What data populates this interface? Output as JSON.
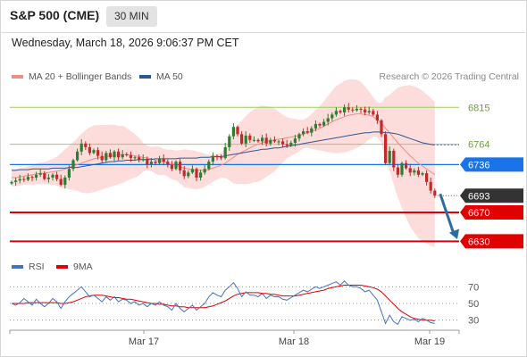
{
  "header": {
    "symbol": "S&P 500 (CME)",
    "timeframe": "30 MIN",
    "datetime": "Wednesday, March 18, 2026 9:06:37 PM CET"
  },
  "legend": {
    "ma20": "MA 20 + Bollinger Bands",
    "ma20_color": "#f28b82",
    "ma50": "MA 50",
    "ma50_color": "#2f5597",
    "credit": "Research © 2026 Trading Central"
  },
  "rsi_legend": {
    "rsi": "RSI",
    "rsi_color": "#4472c4",
    "ma9": "9MA",
    "ma9_color": "#e00000"
  },
  "colors": {
    "up": "#2e7d32",
    "down": "#c62828",
    "band": "#fddcdc",
    "resistance": "#9ccc65",
    "pivot": "#1a73e8",
    "support": "#e00000",
    "arrow": "#2e6aa6"
  },
  "chart_data": {
    "type": "candlestick",
    "ylim": [
      6612,
      6840
    ],
    "x_labels": [
      "Mar 17",
      "Mar 18",
      "Mar 19"
    ],
    "levels": [
      {
        "value": 6815,
        "label": "6815",
        "kind": "resistance"
      },
      {
        "value": 6764,
        "label": "6764",
        "kind": "resistance"
      },
      {
        "value": 6736,
        "label": "6736",
        "kind": "pivot"
      },
      {
        "value": 6693,
        "label": "6693",
        "kind": "last"
      },
      {
        "value": 6670,
        "label": "6670",
        "kind": "support"
      },
      {
        "value": 6630,
        "label": "6630",
        "kind": "support"
      }
    ],
    "close": [
      6712,
      6714,
      6716,
      6715,
      6719,
      6718,
      6722,
      6724,
      6716,
      6718,
      6722,
      6716,
      6708,
      6718,
      6730,
      6742,
      6754,
      6765,
      6760,
      6752,
      6756,
      6748,
      6742,
      6752,
      6746,
      6754,
      6746,
      6750,
      6749,
      6745,
      6746,
      6742,
      6744,
      6736,
      6740,
      6738,
      6744,
      6740,
      6736,
      6730,
      6740,
      6728,
      6720,
      6725,
      6730,
      6718,
      6725,
      6730,
      6740,
      6748,
      6746,
      6745,
      6760,
      6775,
      6788,
      6778,
      6765,
      6776,
      6770,
      6770,
      6768,
      6773,
      6765,
      6770,
      6768,
      6768,
      6764,
      6762,
      6766,
      6772,
      6778,
      6782,
      6780,
      6786,
      6792,
      6790,
      6795,
      6800,
      6805,
      6810,
      6808,
      6815,
      6812,
      6811,
      6813,
      6812,
      6808,
      6810,
      6805,
      6797,
      6778,
      6738,
      6755,
      6732,
      6722,
      6738,
      6731,
      6725,
      6728,
      6722,
      6724,
      6712,
      6700,
      6693
    ],
    "ma20": [
      6718,
      6718,
      6719,
      6720,
      6721,
      6722,
      6723,
      6724,
      6724,
      6725,
      6726,
      6727,
      6728,
      6730,
      6732,
      6734,
      6736,
      6738,
      6740,
      6742,
      6744,
      6745,
      6746,
      6747,
      6748,
      6749,
      6749,
      6750,
      6750,
      6749,
      6748,
      6747,
      6746,
      6745,
      6744,
      6742,
      6741,
      6740,
      6738,
      6736,
      6735,
      6733,
      6731,
      6730,
      6729,
      6728,
      6728,
      6728,
      6729,
      6731,
      6733,
      6735,
      6738,
      6742,
      6746,
      6750,
      6753,
      6756,
      6759,
      6762,
      6764,
      6766,
      6768,
      6769,
      6770,
      6771,
      6772,
      6773,
      6774,
      6775,
      6776,
      6778,
      6780,
      6782,
      6784,
      6786,
      6789,
      6792,
      6795,
      6798,
      6800,
      6802,
      6804,
      6805,
      6806,
      6806,
      6805,
      6804,
      6802,
      6798,
      6793,
      6786,
      6780,
      6773,
      6766,
      6760,
      6754,
      6748,
      6743,
      6738,
      6734,
      6730,
      6726,
      6722
    ],
    "ma50": [
      6728,
      6728,
      6729,
      6729,
      6729,
      6730,
      6730,
      6730,
      6730,
      6730,
      6731,
      6731,
      6731,
      6731,
      6732,
      6732,
      6732,
      6733,
      6734,
      6735,
      6736,
      6737,
      6738,
      6739,
      6740,
      6740,
      6741,
      6741,
      6742,
      6742,
      6742,
      6743,
      6743,
      6743,
      6743,
      6744,
      6744,
      6744,
      6744,
      6744,
      6744,
      6745,
      6745,
      6745,
      6745,
      6745,
      6746,
      6746,
      6746,
      6747,
      6747,
      6747,
      6748,
      6749,
      6750,
      6751,
      6752,
      6753,
      6754,
      6755,
      6756,
      6757,
      6757,
      6758,
      6759,
      6759,
      6760,
      6761,
      6762,
      6763,
      6764,
      6765,
      6766,
      6767,
      6768,
      6769,
      6770,
      6771,
      6772,
      6773,
      6774,
      6775,
      6776,
      6777,
      6778,
      6779,
      6780,
      6780,
      6781,
      6781,
      6781,
      6780,
      6780,
      6779,
      6778,
      6776,
      6774,
      6772,
      6770,
      6768,
      6766,
      6765,
      6764,
      6763
    ],
    "ma50_projection": 6763,
    "arrow_target": 6633,
    "rsi": {
      "ylim": [
        20,
        80
      ],
      "levels": [
        70,
        50,
        30
      ],
      "rsi": [
        50,
        48,
        51,
        56,
        52,
        48,
        55,
        50,
        46,
        50,
        56,
        52,
        44,
        52,
        58,
        62,
        66,
        70,
        64,
        58,
        60,
        56,
        52,
        58,
        54,
        58,
        52,
        55,
        54,
        50,
        52,
        48,
        50,
        46,
        50,
        48,
        52,
        48,
        46,
        42,
        50,
        44,
        40,
        44,
        48,
        42,
        46,
        50,
        58,
        63,
        60,
        58,
        66,
        70,
        75,
        68,
        58,
        64,
        60,
        60,
        58,
        62,
        56,
        60,
        58,
        58,
        55,
        54,
        57,
        60,
        63,
        66,
        64,
        67,
        70,
        68,
        70,
        72,
        74,
        76,
        72,
        77,
        72,
        70,
        70,
        68,
        64,
        66,
        60,
        54,
        40,
        26,
        36,
        28,
        25,
        34,
        32,
        30,
        31,
        28,
        32,
        30,
        27,
        26
      ],
      "ma9": [
        50,
        50,
        50,
        50,
        51,
        51,
        51,
        51,
        51,
        51,
        51,
        51,
        50,
        50,
        51,
        52,
        54,
        56,
        58,
        59,
        60,
        60,
        60,
        59,
        58,
        57,
        57,
        56,
        55,
        55,
        54,
        53,
        52,
        51,
        50,
        50,
        49,
        49,
        48,
        47,
        47,
        46,
        46,
        45,
        45,
        45,
        45,
        45,
        46,
        47,
        49,
        51,
        53,
        56,
        59,
        61,
        62,
        63,
        63,
        63,
        63,
        62,
        62,
        61,
        61,
        60,
        59,
        59,
        59,
        59,
        60,
        61,
        62,
        63,
        64,
        65,
        66,
        68,
        69,
        70,
        71,
        72,
        72,
        72,
        72,
        72,
        71,
        70,
        69,
        67,
        64,
        59,
        54,
        49,
        44,
        40,
        37,
        34,
        32,
        31,
        30,
        30,
        30,
        29
      ]
    }
  }
}
